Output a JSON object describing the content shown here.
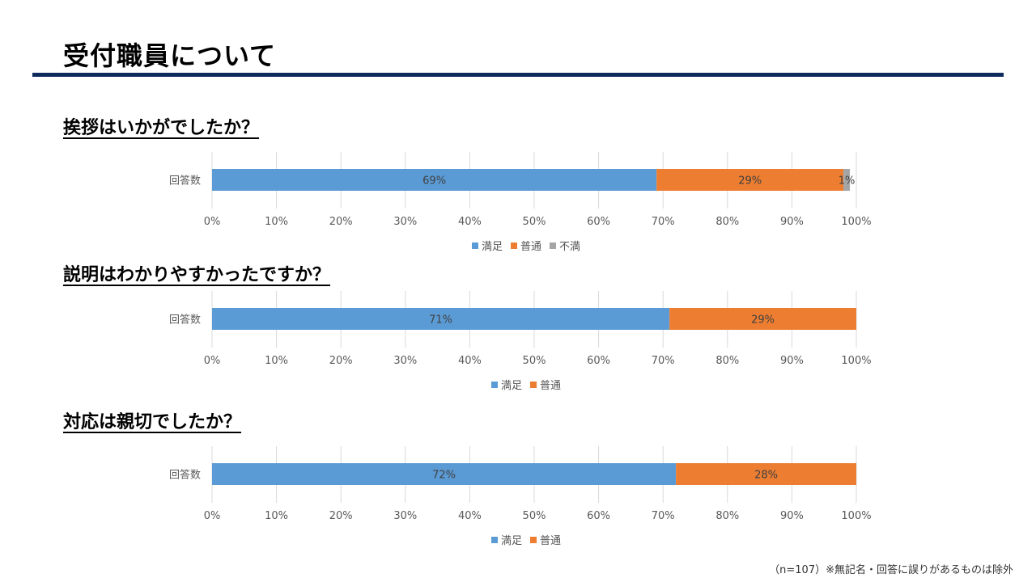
{
  "slide": {
    "title": "受付職員について",
    "footnote": "（n=107）※無記名・回答に誤りがあるものは除外"
  },
  "chart_data": [
    {
      "type": "bar",
      "stacked": true,
      "orientation": "horizontal",
      "percent": true,
      "title": "挨拶はいかがでしたか？",
      "categories": [
        "回答数"
      ],
      "series": [
        {
          "name": "満足",
          "values": [
            69
          ],
          "label": "69%",
          "color": "#5b9bd5"
        },
        {
          "name": "普通",
          "values": [
            29
          ],
          "label": "29%",
          "color": "#ed7d31"
        },
        {
          "name": "不満",
          "values": [
            1
          ],
          "label": "1%",
          "color": "#a5a5a5"
        }
      ],
      "xlim": [
        0,
        100
      ],
      "xticks": [
        "0%",
        "10%",
        "20%",
        "30%",
        "40%",
        "50%",
        "60%",
        "70%",
        "80%",
        "90%",
        "100%"
      ],
      "grid": true,
      "legend": "bottom"
    },
    {
      "type": "bar",
      "stacked": true,
      "orientation": "horizontal",
      "percent": true,
      "title": "説明はわかりやすかったですか？",
      "categories": [
        "回答数"
      ],
      "series": [
        {
          "name": "満足",
          "values": [
            71
          ],
          "label": "71%",
          "color": "#5b9bd5"
        },
        {
          "name": "普通",
          "values": [
            29
          ],
          "label": "29%",
          "color": "#ed7d31"
        }
      ],
      "xlim": [
        0,
        100
      ],
      "xticks": [
        "0%",
        "10%",
        "20%",
        "30%",
        "40%",
        "50%",
        "60%",
        "70%",
        "80%",
        "90%",
        "100%"
      ],
      "grid": true,
      "legend": "bottom"
    },
    {
      "type": "bar",
      "stacked": true,
      "orientation": "horizontal",
      "percent": true,
      "title": "対応は親切でしたか？",
      "categories": [
        "回答数"
      ],
      "series": [
        {
          "name": "満足",
          "values": [
            72
          ],
          "label": "72%",
          "color": "#5b9bd5"
        },
        {
          "name": "普通",
          "values": [
            28
          ],
          "label": "28%",
          "color": "#ed7d31"
        }
      ],
      "xlim": [
        0,
        100
      ],
      "xticks": [
        "0%",
        "10%",
        "20%",
        "30%",
        "40%",
        "50%",
        "60%",
        "70%",
        "80%",
        "90%",
        "100%"
      ],
      "grid": true,
      "legend": "bottom"
    }
  ]
}
